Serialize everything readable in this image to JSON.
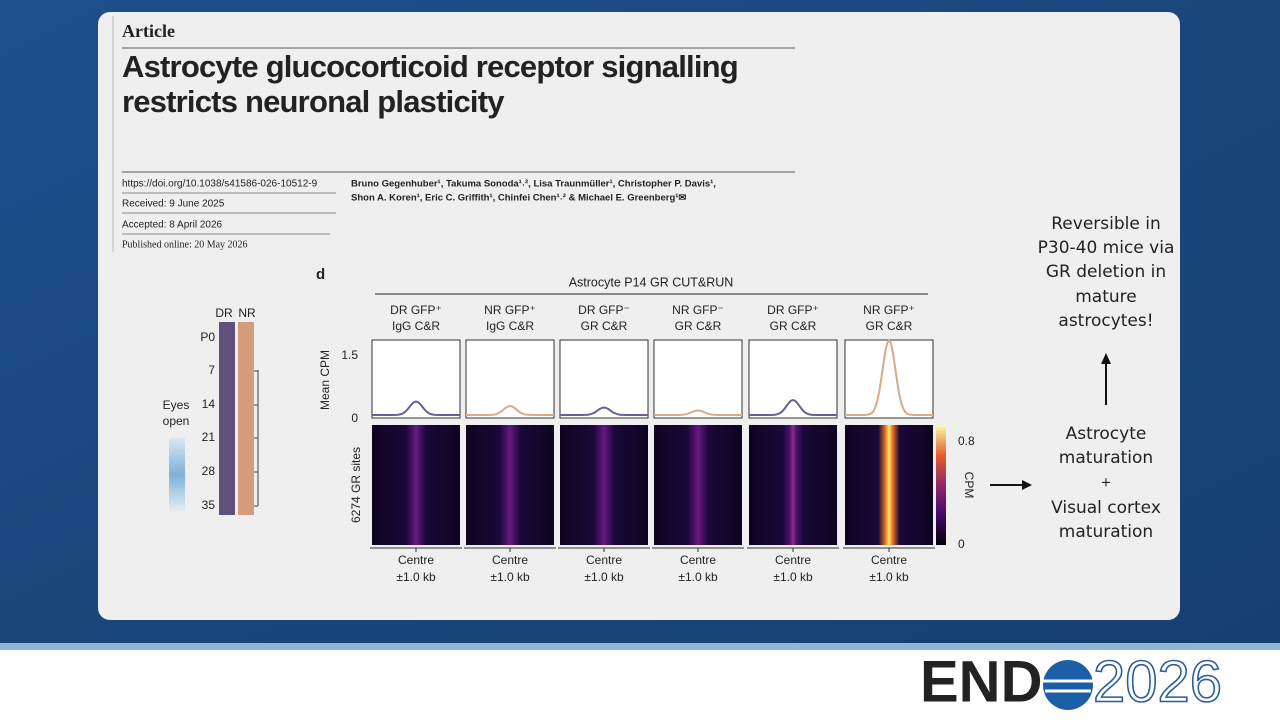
{
  "article": {
    "label": "Article",
    "title_lines": [
      "Astrocyte glucocorticoid receptor signalling",
      "restricts neuronal plasticity"
    ],
    "doi": "https://doi.org/10.1038/s41586-026-10512-9",
    "received": "Received: 9 June 2025",
    "accepted": "Accepted: 8 April 2026",
    "published": "Published online: 20 May 2026",
    "author_lines": [
      "Bruno Gegenhuber¹, Takuma Sonoda¹˒², Lisa Traunmüller¹, Christopher P. Davis¹,",
      "Shon A. Koren¹, Eric C. Griffith¹, Chinfei Chen¹˒² & Michael E. Greenberg¹✉"
    ]
  },
  "timeline": {
    "columns": [
      "DR",
      "NR"
    ],
    "ages": [
      "P0",
      "7",
      "14",
      "21",
      "28",
      "35"
    ],
    "eyes_open": [
      "Eyes",
      "open"
    ]
  },
  "figure": {
    "panel": "d",
    "header": "Astrocyte P14 GR CUT&RUN",
    "profile_axis_label": "Mean CPM",
    "profile_ticks": [
      "1.5",
      "0"
    ],
    "heatmap_axis_label": "6274 GR sites",
    "x_label": [
      "Centre",
      "±1.0 kb"
    ],
    "columns": [
      {
        "label": [
          "DR GFP⁺",
          "IgG C&R"
        ],
        "color": "#6a5f8f"
      },
      {
        "label": [
          "NR GFP⁺",
          "IgG C&R"
        ],
        "color": "#d9a98a"
      },
      {
        "label": [
          "DR GFP⁻",
          "GR C&R"
        ],
        "color": "#6a5f8f"
      },
      {
        "label": [
          "NR GFP⁻",
          "GR C&R"
        ],
        "color": "#d9a98a"
      },
      {
        "label": [
          "DR GFP⁺",
          "GR C&R"
        ],
        "color": "#6a5f8f"
      },
      {
        "label": [
          "NR GFP⁺",
          "GR C&R"
        ],
        "color": "#d9a98a"
      }
    ],
    "colorbar": {
      "label": "CPM",
      "ticks": [
        "0.8",
        "0"
      ]
    }
  },
  "notes": {
    "top_lines": [
      "Reversible in",
      "P30-40 mice via",
      "GR deletion in",
      "mature",
      "astrocytes!"
    ],
    "bottom_lines": [
      "Astrocyte",
      "maturation",
      "+",
      "Visual cortex",
      "maturation"
    ]
  },
  "logo": {
    "left": "END",
    "right": "2026"
  }
}
